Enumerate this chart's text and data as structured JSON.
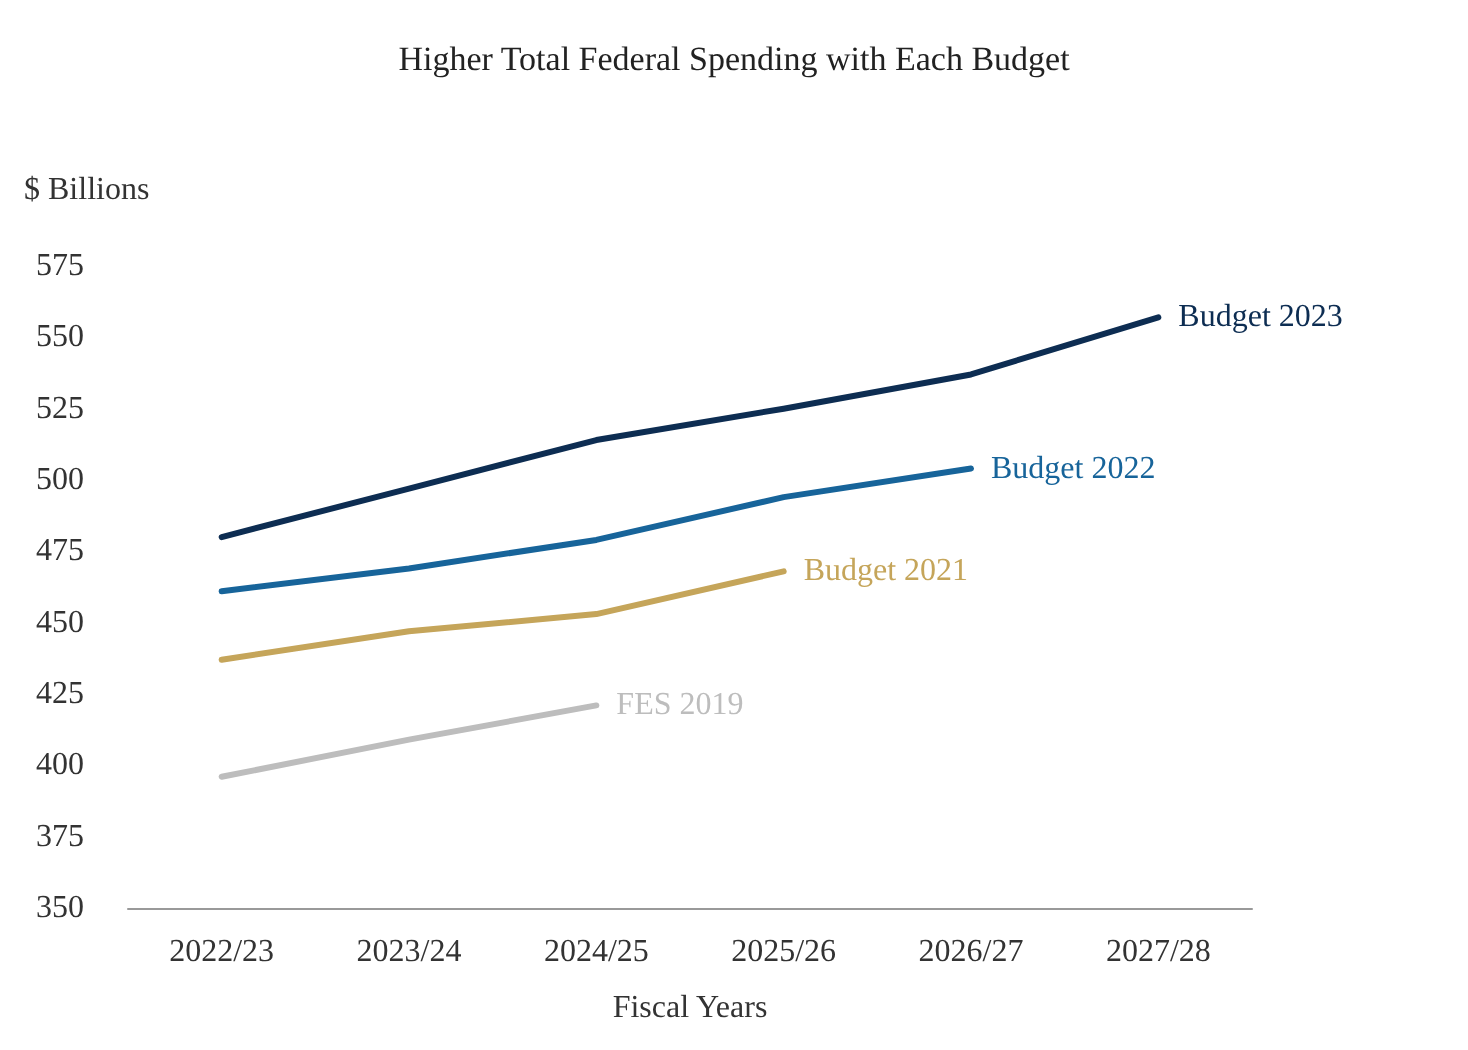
{
  "chart_data": {
    "type": "line",
    "title": "Higher Total Federal Spending with Each Budget",
    "xlabel": "Fiscal Years",
    "ylabel": "$ Billions",
    "categories": [
      "2022/23",
      "2023/24",
      "2024/25",
      "2025/26",
      "2026/27",
      "2027/28"
    ],
    "ylim": [
      350,
      575
    ],
    "yticks": [
      350,
      375,
      400,
      425,
      450,
      475,
      500,
      525,
      550,
      575
    ],
    "grid": false,
    "legend": false,
    "marker": "none",
    "line_style": "solid",
    "series": [
      {
        "name": "Budget 2023",
        "color": "#0d2d52",
        "values": [
          480,
          497,
          514,
          525,
          537,
          557
        ]
      },
      {
        "name": "Budget 2022",
        "color": "#17649a",
        "values": [
          461,
          469,
          479,
          494,
          504,
          null
        ]
      },
      {
        "name": "Budget 2021",
        "color": "#c5a55a",
        "values": [
          437,
          447,
          453,
          468,
          null,
          null
        ]
      },
      {
        "name": "FES 2019",
        "color": "#bdbdbd",
        "values": [
          396,
          409,
          421,
          null,
          null,
          null
        ]
      }
    ]
  }
}
